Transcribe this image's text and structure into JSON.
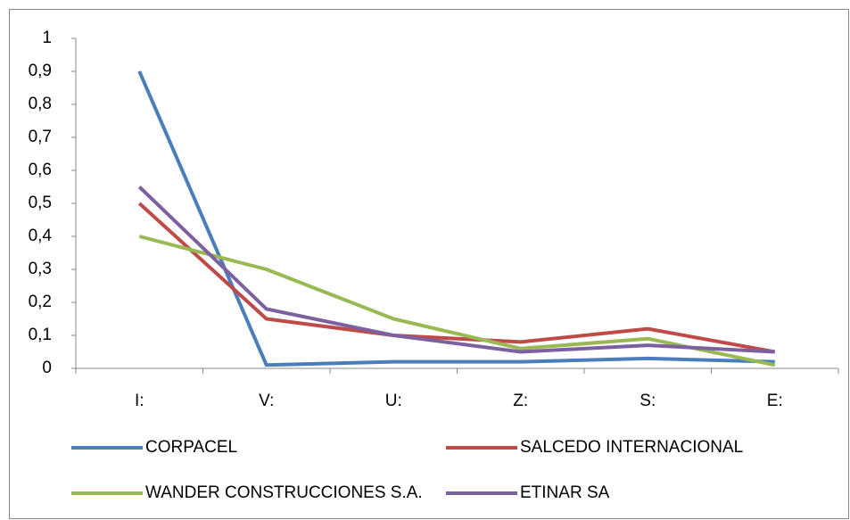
{
  "chart_data": {
    "type": "line",
    "categories": [
      "I:",
      "V:",
      "U:",
      "Z:",
      "S:",
      "E:"
    ],
    "series": [
      {
        "name": "CORPACEL",
        "color": "#4a7ebb",
        "values": [
          0.9,
          0.01,
          0.02,
          0.02,
          0.03,
          0.02
        ]
      },
      {
        "name": "SALCEDO INTERNACIONAL",
        "color": "#be4b48",
        "values": [
          0.5,
          0.15,
          0.1,
          0.08,
          0.12,
          0.05
        ]
      },
      {
        "name": "WANDER CONSTRUCCIONES S.A.",
        "color": "#98b954",
        "values": [
          0.4,
          0.3,
          0.15,
          0.06,
          0.09,
          0.01
        ]
      },
      {
        "name": "ETINAR SA",
        "color": "#7d60a0",
        "values": [
          0.55,
          0.18,
          0.1,
          0.05,
          0.07,
          0.05
        ]
      }
    ],
    "ylim": [
      0,
      1
    ],
    "yticks": [
      0,
      {
        "value": 0.1,
        "label": "0,1"
      },
      {
        "value": 0.2,
        "label": "0,2"
      },
      {
        "value": 0.3,
        "label": "0,3"
      },
      {
        "value": 0.4,
        "label": "0,4"
      },
      {
        "value": 0.5,
        "label": "0,5"
      },
      {
        "value": 0.6,
        "label": "0,6"
      },
      {
        "value": 0.7,
        "label": "0,7"
      },
      {
        "value": 0.8,
        "label": "0,8"
      },
      {
        "value": 0.9,
        "label": "0,9"
      },
      1
    ],
    "grid": false,
    "legend": "bottom"
  }
}
